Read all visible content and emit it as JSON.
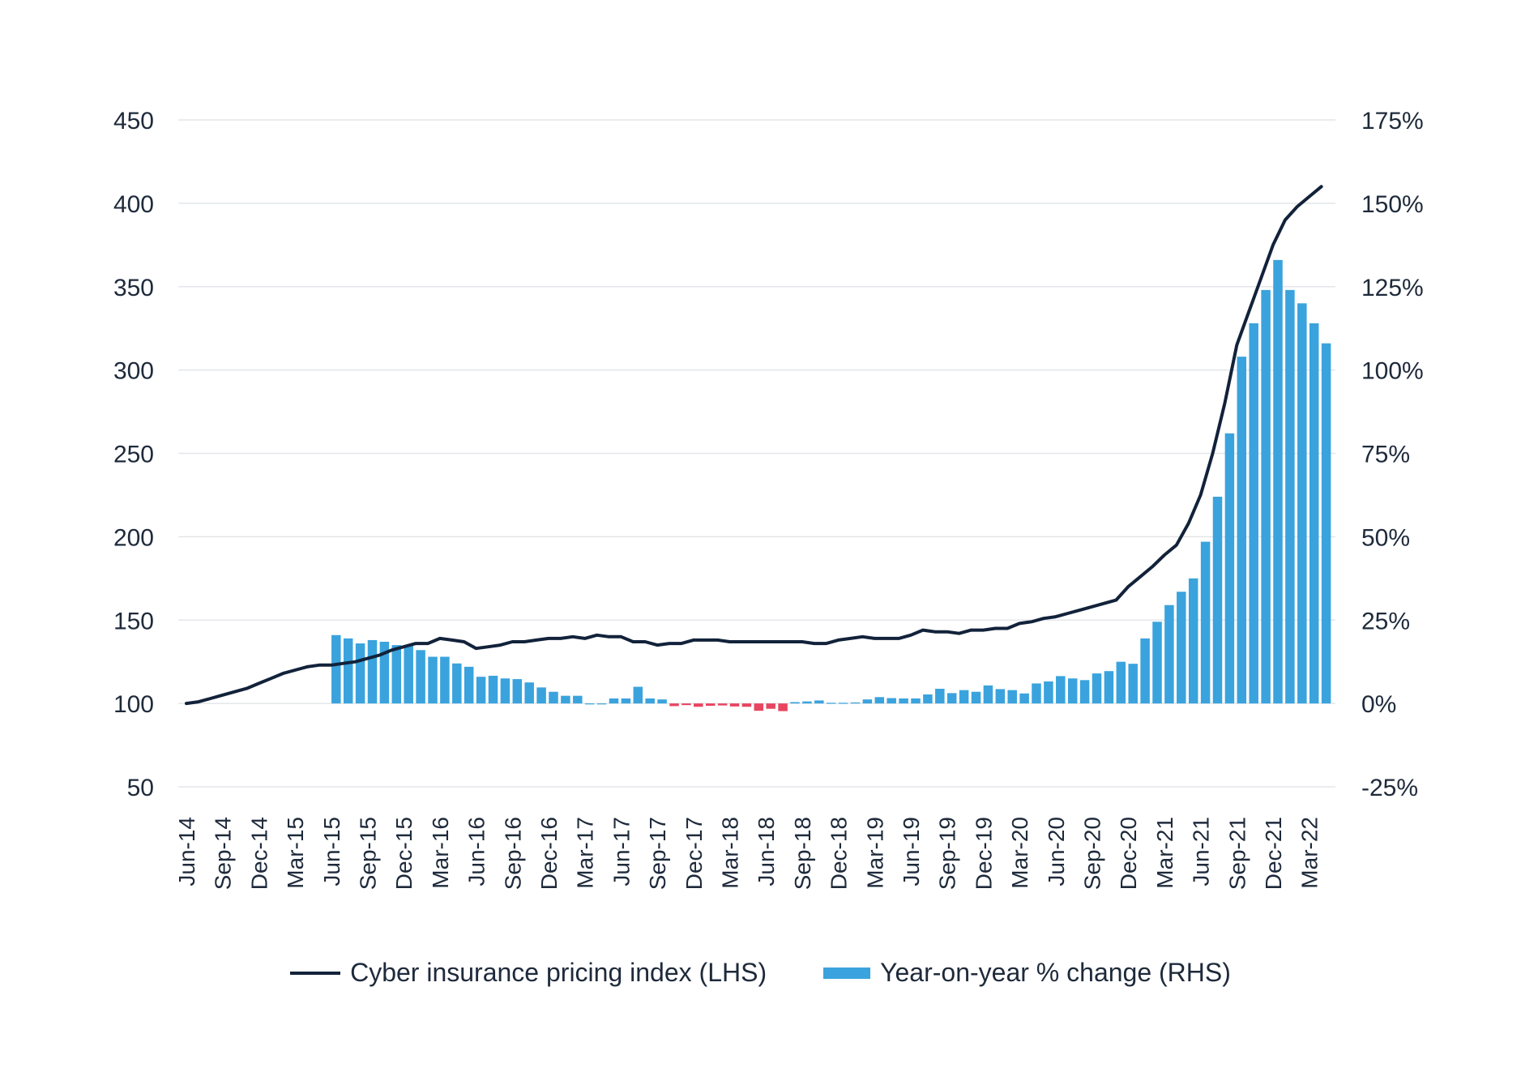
{
  "chart_data": {
    "type": "bar+line",
    "title": "",
    "legend": [
      {
        "label": "Cyber insurance pricing index (LHS)",
        "kind": "line",
        "color": "#12223a"
      },
      {
        "label": "Year-on-year % change (RHS)",
        "kind": "bar",
        "color": "#3aa3dd"
      }
    ],
    "colors": {
      "line": "#12223a",
      "bar_positive": "#3aa3dd",
      "bar_negative": "#e84560",
      "grid": "#e3e6ea"
    },
    "left_axis": {
      "min": 50,
      "max": 450,
      "ticks": [
        "450",
        "400",
        "350",
        "300",
        "250",
        "200",
        "150",
        "100",
        "50"
      ]
    },
    "right_axis": {
      "min": -25,
      "max": 175,
      "ticks": [
        "175%",
        "150%",
        "125%",
        "100%",
        "75%",
        "50%",
        "25%",
        "0%",
        "-25%"
      ]
    },
    "x_tick_labels": [
      "Jun-14",
      "Sep-14",
      "Dec-14",
      "Mar-15",
      "Jun-15",
      "Sep-15",
      "Dec-15",
      "Mar-16",
      "Jun-16",
      "Sep-16",
      "Dec-16",
      "Mar-17",
      "Jun-17",
      "Sep-17",
      "Dec-17",
      "Mar-18",
      "Jun-18",
      "Sep-18",
      "Dec-18",
      "Mar-19",
      "Jun-19",
      "Sep-19",
      "Dec-19",
      "Mar-20",
      "Jun-20",
      "Sep-20",
      "Dec-20",
      "Mar-21",
      "Jun-21",
      "Sep-21",
      "Dec-21",
      "Mar-22"
    ],
    "x_start": "Jun-14",
    "x_end": "May-22",
    "grid": true,
    "legend_position": "bottom",
    "series": [
      {
        "name": "Cyber insurance pricing index (LHS)",
        "axis": "left",
        "values": [
          100,
          101,
          103,
          105,
          107,
          109,
          112,
          115,
          118,
          120,
          122,
          123,
          123,
          124,
          125,
          127,
          129,
          132,
          134,
          136,
          136,
          139,
          138,
          137,
          133,
          134,
          135,
          137,
          137,
          138,
          139,
          139,
          140,
          139,
          141,
          140,
          140,
          137,
          137,
          135,
          136,
          136,
          138,
          138,
          138,
          137,
          137,
          137,
          137,
          137,
          137,
          137,
          136,
          136,
          138,
          139,
          140,
          139,
          139,
          139,
          141,
          144,
          143,
          143,
          142,
          144,
          144,
          145,
          145,
          148,
          149,
          151,
          152,
          154,
          156,
          158,
          160,
          162,
          170,
          176,
          182,
          189,
          195,
          208,
          225,
          250,
          280,
          315,
          335,
          355,
          375,
          390,
          398,
          404,
          410
        ]
      },
      {
        "name": "Year-on-year % change (RHS)",
        "axis": "right",
        "values": [
          null,
          null,
          null,
          null,
          null,
          null,
          null,
          null,
          null,
          null,
          null,
          null,
          20.5,
          19.5,
          18,
          19,
          18.5,
          17.5,
          17.5,
          16,
          14,
          14,
          12,
          11,
          8,
          8.3,
          7.5,
          7.3,
          6.3,
          4.8,
          3.5,
          2.3,
          2.3,
          0,
          0,
          1.5,
          1.5,
          5,
          1.5,
          1.2,
          -0.8,
          -0.5,
          -1,
          -0.7,
          -0.6,
          -0.9,
          -1,
          -2.2,
          -1.6,
          -2.3,
          0.4,
          0.6,
          0.9,
          0.2,
          0.2,
          0.3,
          1.2,
          1.9,
          1.6,
          1.5,
          1.5,
          2.7,
          4.4,
          3.1,
          4,
          3.5,
          5.4,
          4.3,
          4,
          3,
          6,
          6.6,
          8.2,
          7.5,
          7,
          9,
          9.7,
          12.5,
          11.9,
          19.5,
          24.5,
          29.5,
          33.5,
          37.5,
          48.5,
          62,
          81,
          104,
          114,
          124,
          133,
          124,
          120,
          114,
          108
        ]
      }
    ]
  }
}
